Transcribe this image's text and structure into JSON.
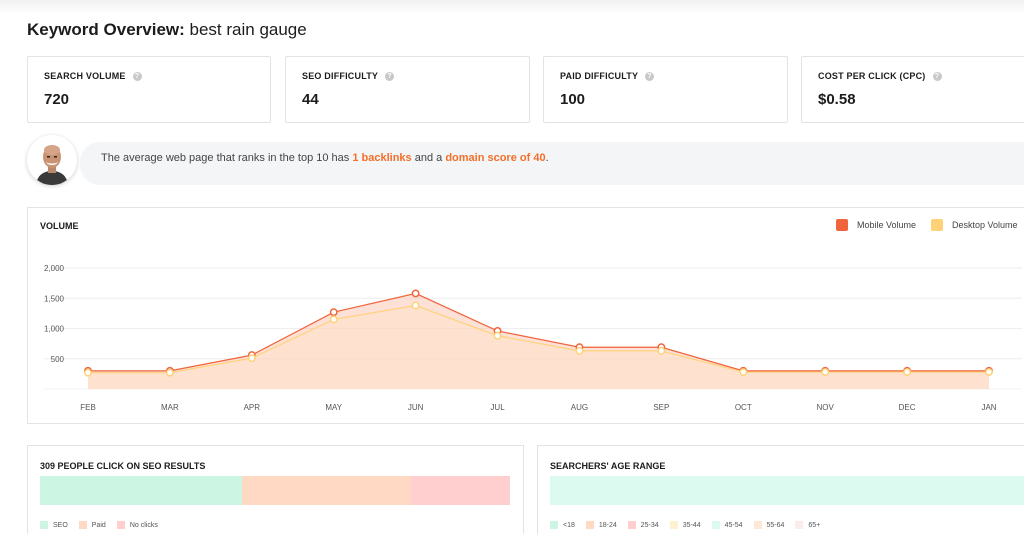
{
  "page": {
    "title_bold": "Keyword Overview:",
    "keyword": "best rain gauge"
  },
  "metrics": [
    {
      "label": "SEARCH VOLUME",
      "value": "720"
    },
    {
      "label": "SEO DIFFICULTY",
      "value": "44"
    },
    {
      "label": "PAID DIFFICULTY",
      "value": "100"
    },
    {
      "label": "COST PER CLICK (CPC)",
      "value": "$0.58"
    }
  ],
  "tip": {
    "prefix": "The average web page that ranks in the top 10 has ",
    "backlinks": "1 backlinks",
    "middle": " and a ",
    "domain": "domain score of 40",
    "suffix": "."
  },
  "volume": {
    "title": "VOLUME",
    "legend_mobile": "Mobile Volume",
    "legend_desktop": "Desktop Volume",
    "colors": {
      "mobile": "#f0643c",
      "desktop": "#ffd27a"
    }
  },
  "chart_data": {
    "type": "area",
    "categories": [
      "FEB",
      "MAR",
      "APR",
      "MAY",
      "JUN",
      "JUL",
      "AUG",
      "SEP",
      "OCT",
      "NOV",
      "DEC",
      "JAN"
    ],
    "yticks": [
      "2,000",
      "1,500",
      "1,000",
      "500"
    ],
    "ylim": [
      0,
      2000
    ],
    "series": [
      {
        "name": "Mobile Volume",
        "values": [
          300,
          300,
          560,
          1270,
          1580,
          960,
          690,
          690,
          300,
          300,
          300,
          300
        ]
      },
      {
        "name": "Desktop Volume",
        "values": [
          270,
          270,
          510,
          1150,
          1380,
          880,
          630,
          630,
          280,
          280,
          280,
          280
        ]
      }
    ]
  },
  "seo_clicks": {
    "title": "309 PEOPLE CLICK ON SEO RESULTS",
    "segments": [
      {
        "color": "#cdf5e3",
        "fraction": 0.43
      },
      {
        "color": "#ffd9c4",
        "fraction": 0.36
      },
      {
        "color": "#ffcfcf",
        "fraction": 0.21
      }
    ],
    "legend": [
      {
        "label": "SEO",
        "color": "#cdf5e3"
      },
      {
        "label": "Paid",
        "color": "#ffd9c4"
      },
      {
        "label": "No clicks",
        "color": "#ffcfcf"
      }
    ]
  },
  "age_range": {
    "title": "SEARCHERS' AGE RANGE",
    "legend": [
      {
        "label": "<18",
        "color": "#cdf5e3"
      },
      {
        "label": "18-24",
        "color": "#ffd9c4"
      },
      {
        "label": "25-34",
        "color": "#ffcfcf"
      },
      {
        "label": "35-44",
        "color": "#fff1cf"
      },
      {
        "label": "45-54",
        "color": "#dcfaf0"
      },
      {
        "label": "55-64",
        "color": "#ffe9d6"
      },
      {
        "label": "65+",
        "color": "#fdecec"
      }
    ]
  }
}
